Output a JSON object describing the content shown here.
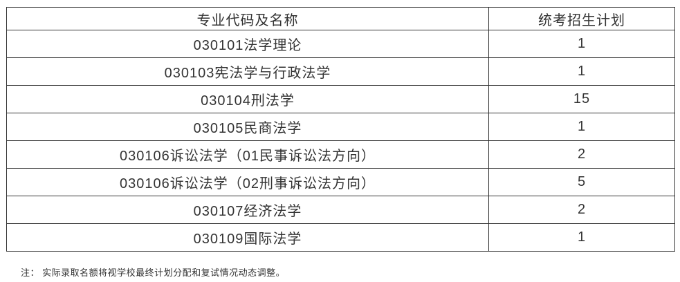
{
  "table": {
    "columns": [
      {
        "label": "专业代码及名称"
      },
      {
        "label": "统考招生计划"
      }
    ],
    "rows": [
      {
        "name": "030101法学理论",
        "plan": "1"
      },
      {
        "name": "030103宪法学与行政法学",
        "plan": "1"
      },
      {
        "name": "030104刑法学",
        "plan": "15"
      },
      {
        "name": "030105民商法学",
        "plan": "1"
      },
      {
        "name": "030106诉讼法学（01民事诉讼法方向）",
        "plan": "2"
      },
      {
        "name": "030106诉讼法学（02刑事诉讼法方向）",
        "plan": "5"
      },
      {
        "name": "030107经济法学",
        "plan": "2"
      },
      {
        "name": "030109国际法学",
        "plan": "1"
      }
    ]
  },
  "note": "注： 实际录取名额将视学校最终计划分配和复试情况动态调整。",
  "colors": {
    "border": "#333333",
    "text": "#333333",
    "background": "#ffffff"
  }
}
